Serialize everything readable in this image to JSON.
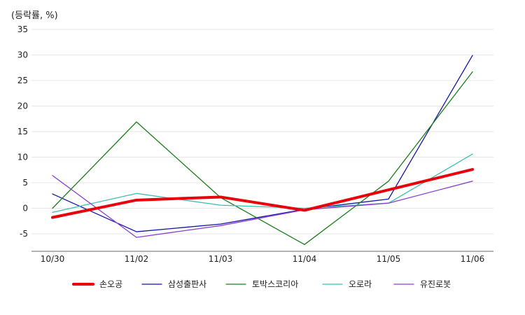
{
  "chart_data": {
    "type": "line",
    "ylabel": "(등락률, %)",
    "categories": [
      "10/30",
      "11/02",
      "11/03",
      "11/04",
      "11/05",
      "11/06"
    ],
    "yticks": [
      35,
      30,
      25,
      20,
      15,
      10,
      5,
      0,
      -5
    ],
    "ylim": [
      -8.5,
      35
    ],
    "grid": true,
    "legend_position": "bottom",
    "series": [
      {
        "name": "손오공",
        "color": "#e8000b",
        "values": [
          -1.8,
          1.6,
          2.2,
          -0.4,
          3.6,
          7.6
        ]
      },
      {
        "name": "삼성출판사",
        "color": "#1414a8",
        "values": [
          2.8,
          -4.6,
          -3.1,
          -0.2,
          1.8,
          29.9
        ]
      },
      {
        "name": "토박스코리아",
        "color": "#1a7f1a",
        "values": [
          0.0,
          16.9,
          2.1,
          -7.1,
          5.3,
          26.7
        ]
      },
      {
        "name": "오로라",
        "color": "#3bbfb3",
        "values": [
          -0.8,
          2.9,
          0.6,
          0.0,
          1.0,
          10.6
        ]
      },
      {
        "name": "유진로봇",
        "color": "#8a3fd1",
        "values": [
          6.4,
          -5.7,
          -3.4,
          -0.3,
          1.0,
          5.3
        ]
      }
    ]
  }
}
